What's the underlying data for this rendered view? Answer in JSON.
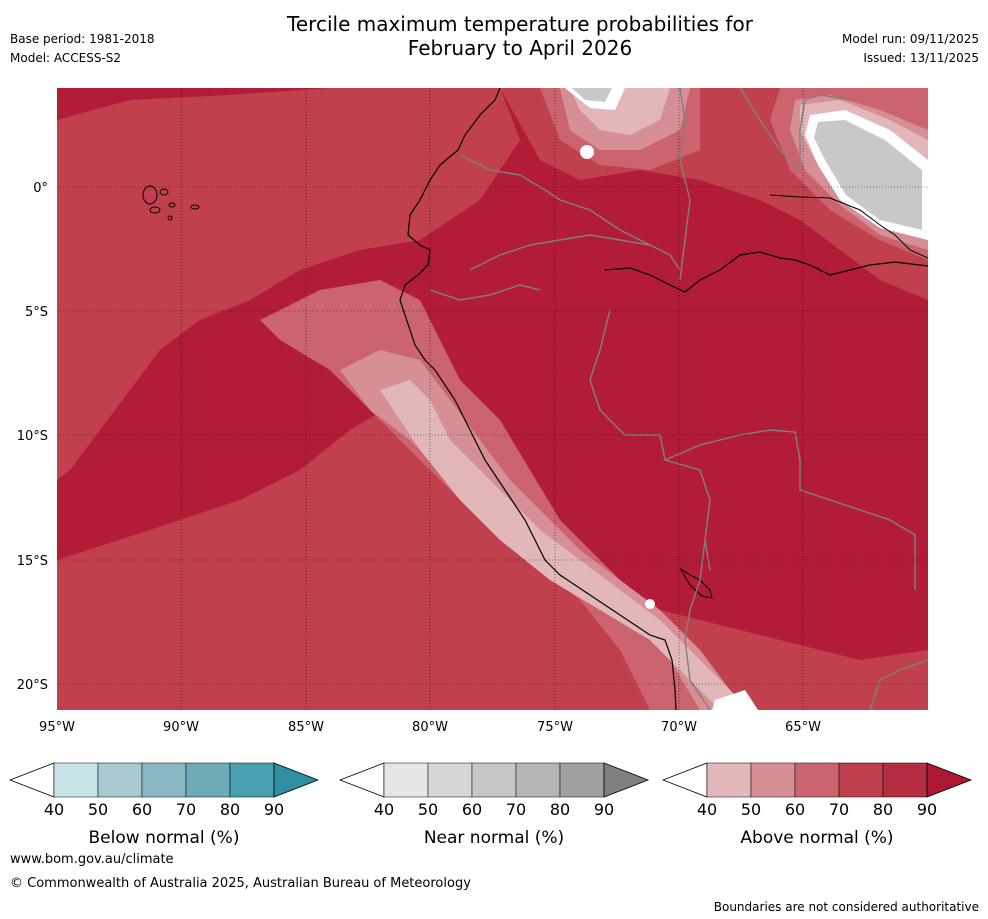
{
  "header": {
    "title_line1": "Tercile maximum temperature probabilities for",
    "title_line2": "February to April 2026",
    "base_period": "Base period: 1981-2018",
    "model": "Model: ACCESS-S2",
    "model_run": "Model run: 09/11/2025",
    "issued": "Issued: 13/11/2025"
  },
  "map": {
    "lat_labels": [
      "0°",
      "5°S",
      "10°S",
      "15°S",
      "20°S"
    ],
    "lon_labels": [
      "95°W",
      "90°W",
      "85°W",
      "80°W",
      "75°W",
      "70°W",
      "65°W"
    ],
    "colors": {
      "above_90": "#b31c38",
      "above_80": "#c0404e",
      "above_70": "#cc6470",
      "above_60": "#d78f96",
      "above_50": "#e2b7ba",
      "near_70": "#c8c8c8",
      "white": "#ffffff",
      "coast": "#000000",
      "border": "#808080"
    }
  },
  "colorbars": [
    {
      "name": "below",
      "title": "Below normal (%)",
      "ticks": [
        "40",
        "50",
        "60",
        "70",
        "80",
        "90"
      ],
      "colors": [
        "#ffffff",
        "#c7e3e8",
        "#a7c9cf",
        "#89b8c2",
        "#6baab6",
        "#48a0b0",
        "#2e8fa3"
      ]
    },
    {
      "name": "near",
      "title": "Near normal (%)",
      "ticks": [
        "40",
        "50",
        "60",
        "70",
        "80",
        "90"
      ],
      "colors": [
        "#ffffff",
        "#e6e6e6",
        "#d6d6d6",
        "#c6c6c6",
        "#b6b6b6",
        "#a0a0a0",
        "#808080"
      ]
    },
    {
      "name": "above",
      "title": "Above normal (%)",
      "ticks": [
        "40",
        "50",
        "60",
        "70",
        "80",
        "90"
      ],
      "colors": [
        "#ffffff",
        "#e2b7ba",
        "#d78f96",
        "#cc6470",
        "#c0404e",
        "#b52d41",
        "#ac1832"
      ]
    }
  ],
  "footer": {
    "website": "www.bom.gov.au/climate",
    "copyright": "© Commonwealth of Australia 2025, Australian Bureau of Meteorology",
    "disclaimer": "Boundaries are not considered authoritative"
  }
}
